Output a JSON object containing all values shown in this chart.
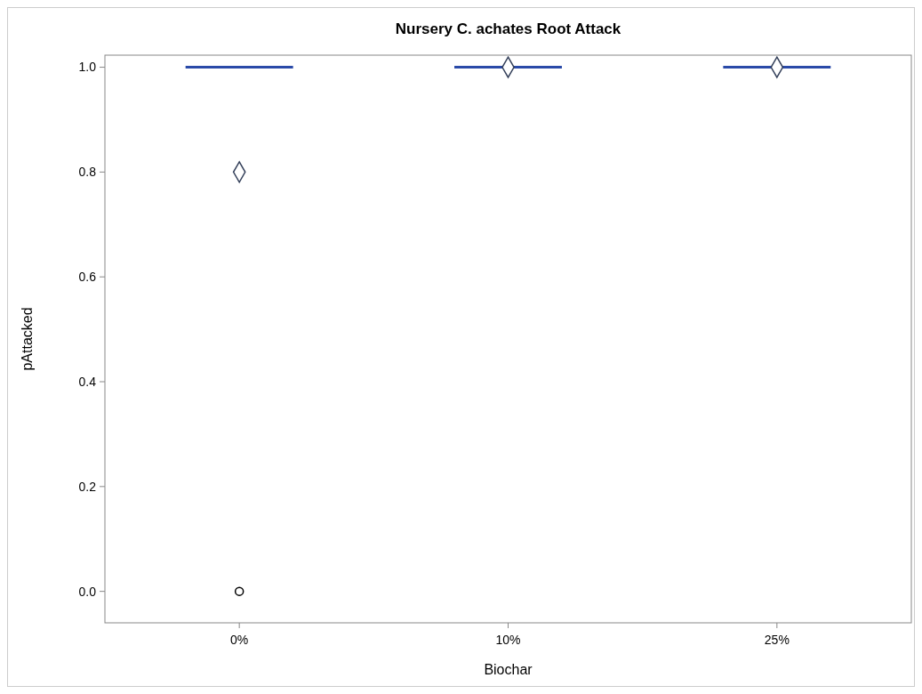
{
  "chart_data": {
    "type": "box",
    "title": "Nursery C. achates Root Attack",
    "xlabel": "Biochar",
    "ylabel": "pAttacked",
    "categories": [
      "0%",
      "10%",
      "25%"
    ],
    "color": "#2a4aa8",
    "boxes": [
      {
        "low": 1,
        "q1": 1,
        "median": 1,
        "q3": 1,
        "high": 1,
        "mean": 0.8,
        "outliers": [
          0
        ]
      },
      {
        "low": 1,
        "q1": 1,
        "median": 1,
        "q3": 1,
        "high": 1,
        "mean": 1
      },
      {
        "low": 1,
        "q1": 1,
        "median": 1,
        "q3": 1,
        "high": 1,
        "mean": 1
      }
    ],
    "ylim": [
      -0.06,
      1.023
    ],
    "yticks": [
      {
        "value": 0,
        "label": "0.0"
      },
      {
        "value": 0.2,
        "label": "0.2"
      },
      {
        "value": 0.4,
        "label": "0.4"
      },
      {
        "value": 0.6,
        "label": "0.6"
      },
      {
        "value": 0.8,
        "label": "0.8"
      },
      {
        "value": 1,
        "label": "1.0"
      }
    ],
    "grid": false,
    "marker": "diamond"
  }
}
